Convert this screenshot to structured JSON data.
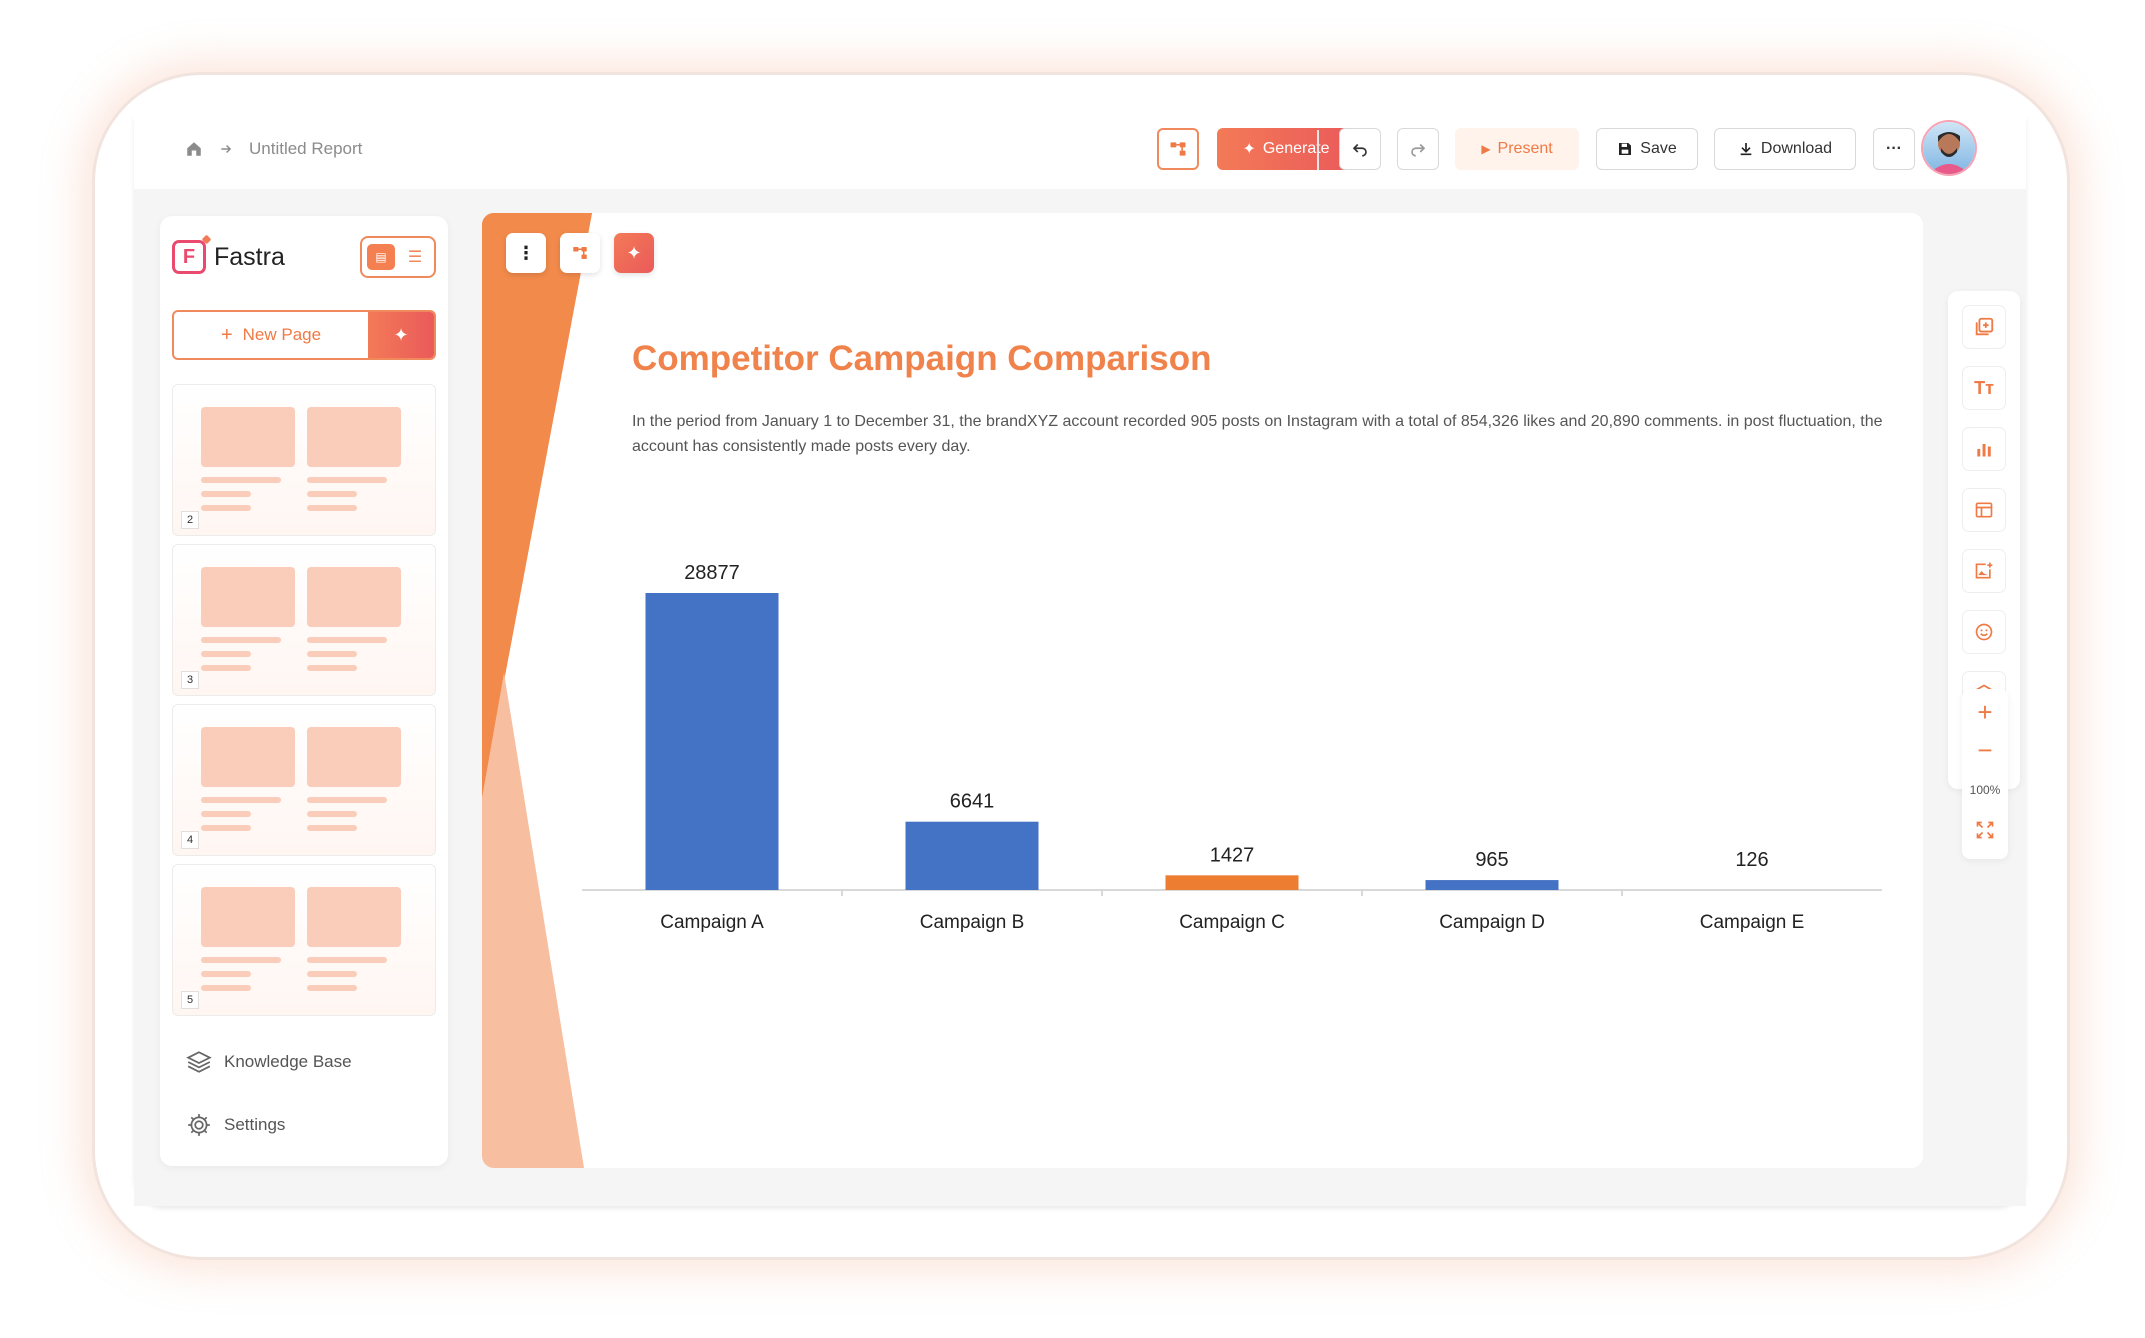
{
  "header": {
    "breadcrumb_title": "Untitled Report",
    "generate_label": "Generate",
    "present_label": "Present",
    "save_label": "Save",
    "download_label": "Download",
    "more_label": "···"
  },
  "sidebar": {
    "brand": "Fastra",
    "new_page_label": "New Page",
    "pages": [
      "2",
      "3",
      "4",
      "5"
    ],
    "knowledge_base_label": "Knowledge Base",
    "settings_label": "Settings"
  },
  "slide": {
    "title": "Competitor Campaign Comparison",
    "description": "In the period from January 1 to December 31, the brandXYZ account recorded 905 posts on Instagram with a total of 854,326 likes and 20,890 comments. in post fluctuation, the account has consistently made posts every day."
  },
  "chart_data": {
    "type": "bar",
    "categories": [
      "Campaign A",
      "Campaign B",
      "Campaign C",
      "Campaign D",
      "Campaign E"
    ],
    "values": [
      28877,
      6641,
      1427,
      965,
      126
    ],
    "bar_colors": [
      "#4472c4",
      "#4472c4",
      "#ed7d31",
      "#4472c4",
      "#4472c4"
    ],
    "data_labels": true,
    "grid": false,
    "title": "",
    "xlabel": "",
    "ylabel": ""
  },
  "zoom": {
    "level": "100%"
  },
  "colors": {
    "accent": "#f0834b",
    "brand": "#e94a6d",
    "bar_blue": "#4472c4",
    "bar_orange": "#ed7d31"
  }
}
